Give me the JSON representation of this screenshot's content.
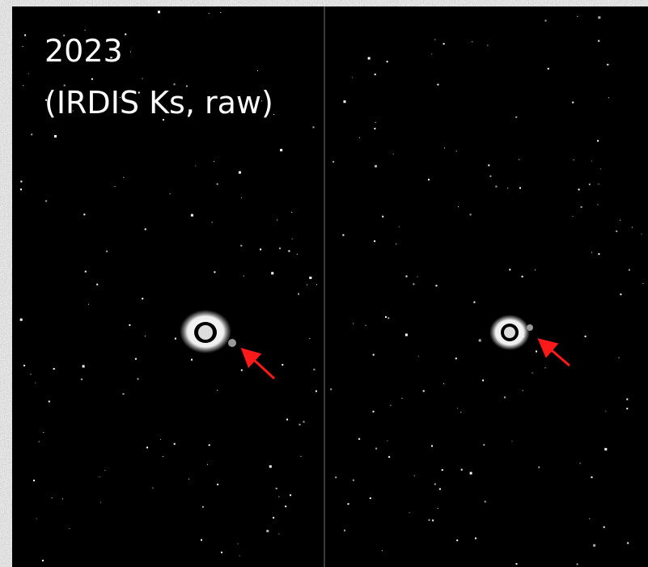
{
  "image": {
    "caption_lines": [
      "2023",
      "(IRDIS Ks, raw)"
    ]
  }
}
